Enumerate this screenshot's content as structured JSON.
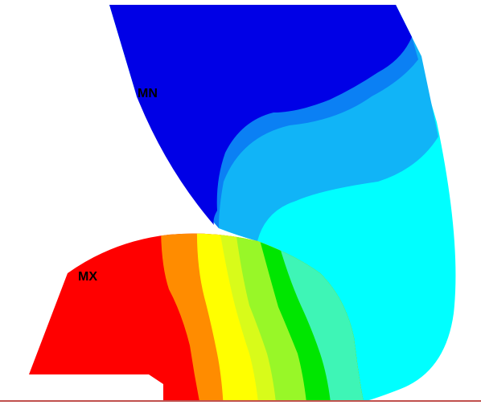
{
  "labels": {
    "min": "MN",
    "max": "MX"
  },
  "colors": {
    "background": "#ffffff",
    "baseline": "#c0504d",
    "band_blue_dark": "#0000e6",
    "band_blue_mid": "#0b80f4",
    "band_blue_light": "#11b4f7",
    "band_cyan": "#00ffff",
    "band_teal": "#3ef5b6",
    "band_green": "#00e600",
    "band_lime": "#98f728",
    "band_yellow_green": "#d8fb1a",
    "band_yellow": "#ffff00",
    "band_orange": "#ff8c00",
    "band_red": "#ff0000"
  }
}
